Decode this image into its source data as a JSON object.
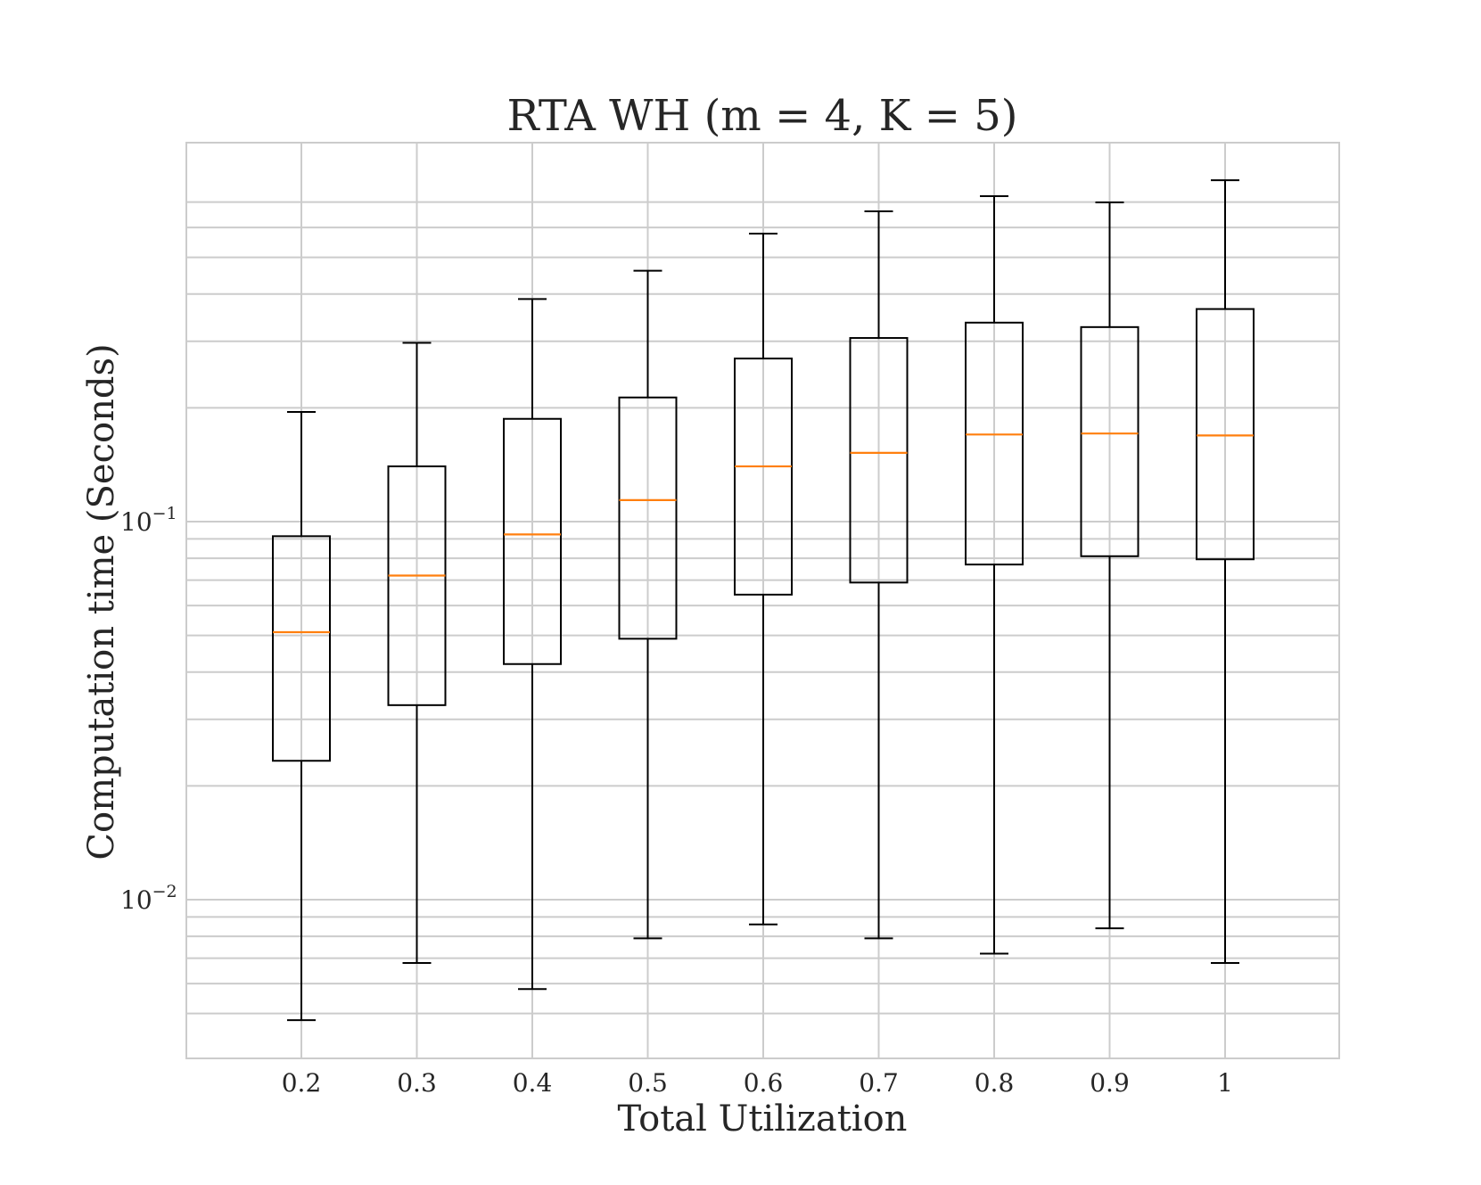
{
  "chart_data": {
    "type": "box",
    "title": "RTA WH (m = 4, K = 5)",
    "xlabel": "Total Utilization",
    "ylabel": "Computation time (Seconds)",
    "y_scale": "log",
    "ylim": [
      0.0043,
      0.75
    ],
    "y_ticks": [
      {
        "value": 0.1,
        "base": "10",
        "exponent": "−1"
      },
      {
        "value": 0.01,
        "base": "10",
        "exponent": "−2"
      }
    ],
    "grid": true,
    "categories": [
      "0.2",
      "0.3",
      "0.4",
      "0.5",
      "0.6",
      "0.7",
      "0.8",
      "0.9",
      "1"
    ],
    "boxes": [
      {
        "whislo": 0.0048,
        "q1": 0.0233,
        "med": 0.051,
        "q3": 0.0915,
        "whishi": 0.195
      },
      {
        "whislo": 0.0068,
        "q1": 0.0327,
        "med": 0.072,
        "q3": 0.14,
        "whishi": 0.297
      },
      {
        "whislo": 0.0058,
        "q1": 0.042,
        "med": 0.0925,
        "q3": 0.187,
        "whishi": 0.388
      },
      {
        "whislo": 0.0079,
        "q1": 0.049,
        "med": 0.114,
        "q3": 0.213,
        "whishi": 0.461
      },
      {
        "whislo": 0.0086,
        "q1": 0.0641,
        "med": 0.14,
        "q3": 0.27,
        "whishi": 0.578
      },
      {
        "whislo": 0.0079,
        "q1": 0.069,
        "med": 0.152,
        "q3": 0.306,
        "whishi": 0.662
      },
      {
        "whislo": 0.0072,
        "q1": 0.077,
        "med": 0.17,
        "q3": 0.336,
        "whishi": 0.726
      },
      {
        "whislo": 0.0084,
        "q1": 0.081,
        "med": 0.171,
        "q3": 0.327,
        "whishi": 0.699
      },
      {
        "whislo": 0.0068,
        "q1": 0.0795,
        "med": 0.169,
        "q3": 0.365,
        "whishi": 0.8
      }
    ],
    "colors": {
      "box": "#000000",
      "median": "#ff7f0e",
      "grid": "#cccccc",
      "frame": "#cccccc",
      "text": "#262626"
    }
  }
}
